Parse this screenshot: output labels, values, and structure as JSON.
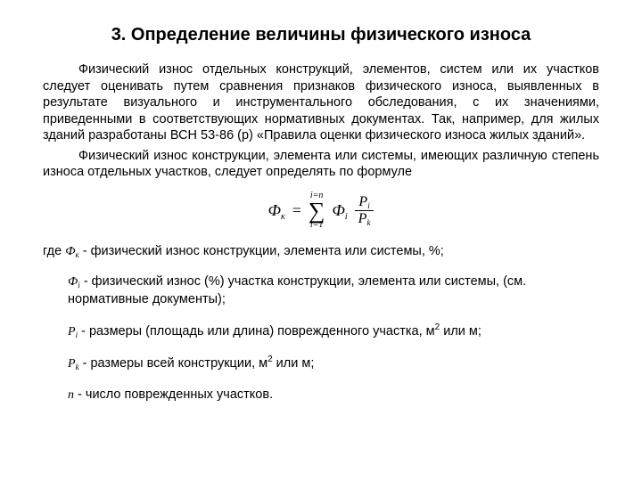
{
  "title": "3. Определение величины физического износа",
  "para1": "Физический износ отдельных конструкций, элементов, систем или их участков следует оценивать путем сравнения признаков физического износа, выявленных в результате визуального и инструментального обследования, с их значениями, приведенными в соответствующих нормативных документах. Так, например, для жилых зданий разработаны ВСН 53-86 (р) «Правила оценки физического износа жилых зданий».",
  "para2": "Физический износ конструкции, элемента или системы, имеющих различную степень износа отдельных участков, следует определять по формуле",
  "formula": {
    "lhs_main": "Ф",
    "lhs_sub": "к",
    "eq": "=",
    "sum_top": "i=n",
    "sum_sigma": "∑",
    "sum_bot": "i=1",
    "phi_i_main": "Ф",
    "phi_i_sub": "i",
    "frac_num_main": "P",
    "frac_num_sub": "i",
    "frac_den_main": "P",
    "frac_den_sub": "k"
  },
  "where": "где",
  "d1_sym_main": "Ф",
  "d1_sym_sub": "к",
  "d1_text": "- физический износ конструкции, элемента или системы, %;",
  "d2_sym_main": "Ф",
  "d2_sym_sub": "i",
  "d2_text": "-  физический износ (%) участка конструкции, элемента или системы, (см. нормативные документы);",
  "d3_sym_main": "P",
  "d3_sym_sub": "i",
  "d3_text_a": "-  размеры (площадь или длина) поврежденного участка, м",
  "d3_sup": "2",
  "d3_text_b": " или м;",
  "d4_sym_main": "P",
  "d4_sym_sub": "k",
  "d4_text_a": "- размеры всей конструкции, м",
  "d4_sup": "2",
  "d4_text_b": " или м;",
  "d5_sym": "n",
  "d5_text": " - число поврежденных участков.",
  "colors": {
    "text": "#000000",
    "bg": "#ffffff"
  },
  "typography": {
    "body_pt": 14.5,
    "heading_pt": 20,
    "family": "Arial"
  }
}
